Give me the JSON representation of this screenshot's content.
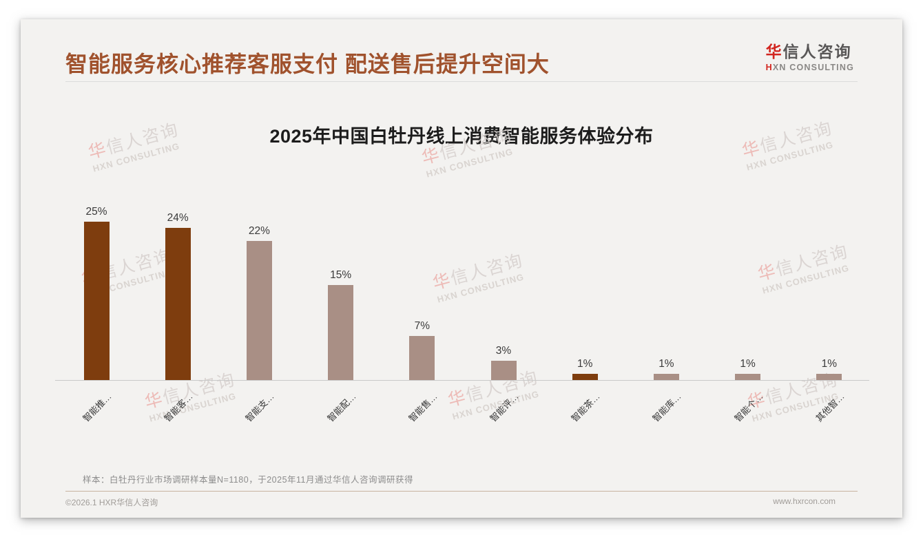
{
  "page": {
    "title": "智能服务核心推荐客服支付 配送售后提升空间大",
    "logo": {
      "cn_first": "华",
      "cn_rest": "信人咨询",
      "en_first": "H",
      "en_rest": "XN CONSULTING"
    },
    "note": "样本：白牡丹行业市场调研样本量N=1180，于2025年11月通过华信人咨询调研获得",
    "footer": {
      "left": "©2026.1 HXR华信人咨询",
      "right": "www.hxrcon.com"
    },
    "watermark": {
      "line1_first": "华",
      "line1_rest": "信人咨询",
      "line2": "HXN CONSULTING"
    }
  },
  "chart_data": {
    "type": "bar",
    "title": "2025年中国白牡丹线上消费智能服务体验分布",
    "categories": [
      "智能推…",
      "智能客…",
      "智能支…",
      "智能配…",
      "智能售…",
      "智能评…",
      "智能茶…",
      "智能库…",
      "智能个…",
      "其他智…"
    ],
    "values": [
      25,
      24,
      22,
      15,
      7,
      3,
      1,
      1,
      1,
      1
    ],
    "value_labels": [
      "25%",
      "24%",
      "22%",
      "15%",
      "7%",
      "3%",
      "1%",
      "1%",
      "1%",
      "1%"
    ],
    "highlighted": [
      true,
      true,
      false,
      false,
      false,
      false,
      true,
      false,
      false,
      false
    ],
    "colors": {
      "highlight": "#7e3d0e",
      "normal": "#a98f85"
    },
    "xlabel": "",
    "ylabel": "",
    "ylim": [
      0,
      27
    ],
    "grid": false,
    "legend": null
  }
}
